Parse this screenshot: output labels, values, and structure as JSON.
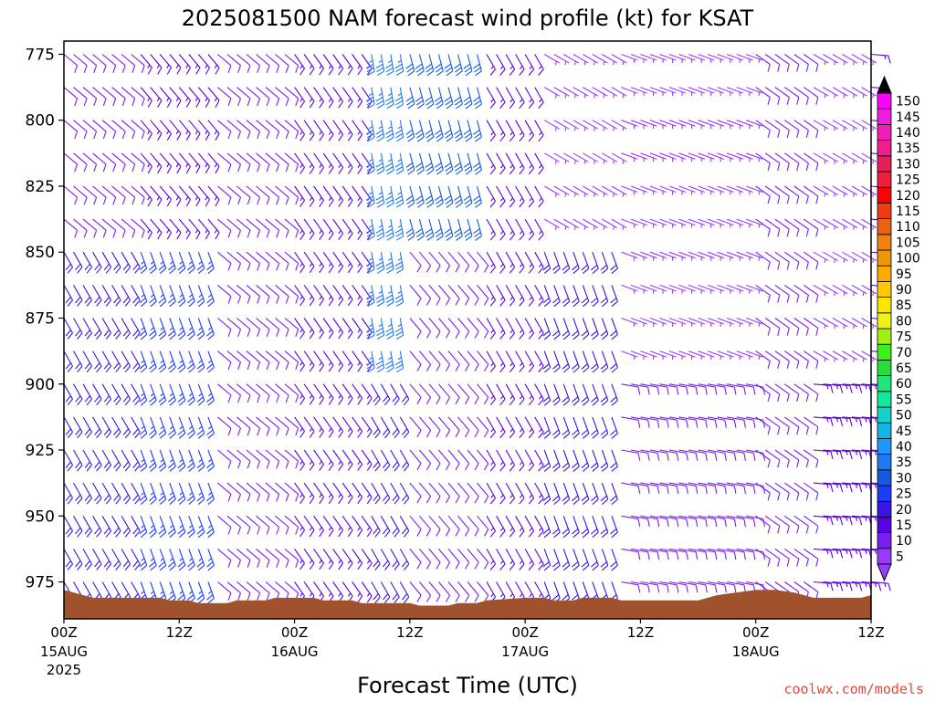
{
  "chart_data": {
    "type": "wind-barb-profile",
    "title": "2025081500 NAM forecast wind profile (kt) for KSAT",
    "xlabel": "Forecast Time (UTC)",
    "ylabel": "",
    "x_range_hours": [
      0,
      84
    ],
    "y_range_hPa": [
      770,
      989
    ],
    "y_ticks": [
      775,
      800,
      825,
      850,
      875,
      900,
      925,
      950,
      975
    ],
    "x_ticks": [
      {
        "hour": 0,
        "label": "00Z",
        "date": "15AUG",
        "year": "2025"
      },
      {
        "hour": 12,
        "label": "12Z",
        "date": "",
        "year": ""
      },
      {
        "hour": 24,
        "label": "00Z",
        "date": "16AUG",
        "year": ""
      },
      {
        "hour": 36,
        "label": "12Z",
        "date": "",
        "year": ""
      },
      {
        "hour": 48,
        "label": "00Z",
        "date": "17AUG",
        "year": ""
      },
      {
        "hour": 60,
        "label": "12Z",
        "date": "",
        "year": ""
      },
      {
        "hour": 72,
        "label": "00Z",
        "date": "18AUG",
        "year": ""
      },
      {
        "hour": 84,
        "label": "12Z",
        "date": "",
        "year": ""
      }
    ],
    "wind_speed_colorbar_kt": [
      5,
      10,
      15,
      20,
      25,
      30,
      35,
      40,
      45,
      50,
      55,
      60,
      65,
      70,
      75,
      80,
      85,
      90,
      95,
      100,
      105,
      110,
      115,
      120,
      125,
      130,
      135,
      140,
      145,
      150
    ],
    "colorbar_colors": [
      "#9a3cff",
      "#7a1ef0",
      "#5a00e6",
      "#3a14e6",
      "#1e3cff",
      "#145adc",
      "#1e78f0",
      "#1e96ff",
      "#14b4e6",
      "#14d2c8",
      "#14e6a0",
      "#1ee678",
      "#28dc3c",
      "#3cf01e",
      "#a0f014",
      "#f0f01e",
      "#ffe600",
      "#ffc800",
      "#ffaa00",
      "#f09600",
      "#f08214",
      "#e66414",
      "#f03c14",
      "#ff0000",
      "#f01e3c",
      "#e61e5a",
      "#f01e8c",
      "#f01eb4",
      "#f01edc",
      "#ff00ff"
    ],
    "surface_pressure_hPa": [
      [
        0,
        978
      ],
      [
        1,
        979
      ],
      [
        2,
        980
      ],
      [
        3,
        981
      ],
      [
        10,
        981
      ],
      [
        11,
        982
      ],
      [
        13,
        982
      ],
      [
        14,
        983
      ],
      [
        17,
        983
      ],
      [
        18,
        982
      ],
      [
        21,
        982
      ],
      [
        22,
        981
      ],
      [
        26,
        981
      ],
      [
        27,
        982
      ],
      [
        30,
        982
      ],
      [
        31,
        983
      ],
      [
        36,
        983
      ],
      [
        37,
        984
      ],
      [
        40,
        984
      ],
      [
        41,
        983
      ],
      [
        43,
        983
      ],
      [
        44,
        982
      ],
      [
        48,
        981
      ],
      [
        50,
        981
      ],
      [
        51,
        982
      ],
      [
        53,
        982
      ],
      [
        54,
        981
      ],
      [
        57,
        981
      ],
      [
        58,
        982
      ],
      [
        66,
        982
      ],
      [
        67,
        981
      ],
      [
        68,
        980
      ],
      [
        70,
        979
      ],
      [
        72,
        978
      ],
      [
        74,
        978
      ],
      [
        76,
        979
      ],
      [
        77,
        980
      ],
      [
        78,
        981
      ],
      [
        83,
        981
      ],
      [
        84,
        980
      ]
    ],
    "winds": [
      {
        "hours": [
          0,
          8
        ],
        "levels": [
          770,
          850
        ],
        "dir_deg": 130,
        "speed_kt": 10
      },
      {
        "hours": [
          0,
          8
        ],
        "levels": [
          850,
          980
        ],
        "dir_deg": 150,
        "speed_kt": 20
      },
      {
        "hours": [
          8,
          16
        ],
        "levels": [
          770,
          850
        ],
        "dir_deg": 140,
        "speed_kt": 15
      },
      {
        "hours": [
          8,
          16
        ],
        "levels": [
          850,
          980
        ],
        "dir_deg": 160,
        "speed_kt": 25
      },
      {
        "hours": [
          16,
          24
        ],
        "levels": [
          770,
          980
        ],
        "dir_deg": 130,
        "speed_kt": 12
      },
      {
        "hours": [
          24,
          32
        ],
        "levels": [
          770,
          980
        ],
        "dir_deg": 145,
        "speed_kt": 18
      },
      {
        "hours": [
          32,
          36
        ],
        "levels": [
          770,
          900
        ],
        "dir_deg": 170,
        "speed_kt": 35
      },
      {
        "hours": [
          32,
          36
        ],
        "levels": [
          900,
          980
        ],
        "dir_deg": 150,
        "speed_kt": 22
      },
      {
        "hours": [
          36,
          44
        ],
        "levels": [
          770,
          850
        ],
        "dir_deg": 165,
        "speed_kt": 30
      },
      {
        "hours": [
          36,
          44
        ],
        "levels": [
          850,
          980
        ],
        "dir_deg": 140,
        "speed_kt": 12
      },
      {
        "hours": [
          44,
          50
        ],
        "levels": [
          770,
          980
        ],
        "dir_deg": 150,
        "speed_kt": 15
      },
      {
        "hours": [
          50,
          58
        ],
        "levels": [
          770,
          850
        ],
        "dir_deg": 120,
        "speed_kt": 8
      },
      {
        "hours": [
          50,
          58
        ],
        "levels": [
          850,
          980
        ],
        "dir_deg": 160,
        "speed_kt": 22
      },
      {
        "hours": [
          58,
          72
        ],
        "levels": [
          770,
          900
        ],
        "dir_deg": 110,
        "speed_kt": 7
      },
      {
        "hours": [
          58,
          72
        ],
        "levels": [
          900,
          980
        ],
        "dir_deg": 100,
        "speed_kt": 12
      },
      {
        "hours": [
          72,
          78
        ],
        "levels": [
          770,
          980
        ],
        "dir_deg": 125,
        "speed_kt": 10
      },
      {
        "hours": [
          78,
          84
        ],
        "levels": [
          770,
          900
        ],
        "dir_deg": 120,
        "speed_kt": 8
      },
      {
        "hours": [
          78,
          84
        ],
        "levels": [
          900,
          980
        ],
        "dir_deg": 95,
        "speed_kt": 18
      }
    ]
  },
  "credit": "coolwx.com/models",
  "colors": {
    "ground": "#a0522d",
    "text": "#000000",
    "credit": "#e8463c"
  }
}
